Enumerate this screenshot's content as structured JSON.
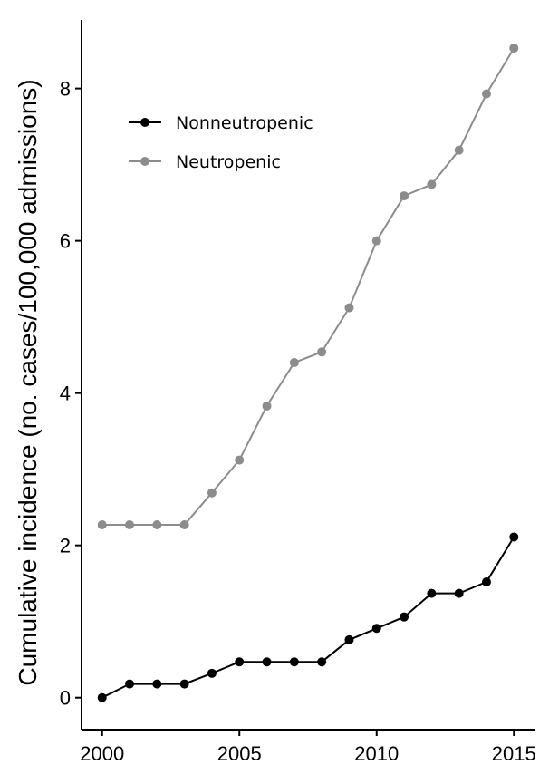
{
  "chart_data": {
    "type": "line",
    "title": "",
    "xlabel": "",
    "ylabel": "Cumulative incidence (no. cases/100,000 admissions)",
    "xlim": [
      1999.25,
      2015.75
    ],
    "ylim": [
      -0.42,
      8.9
    ],
    "xticks": [
      2000,
      2005,
      2010,
      2015
    ],
    "yticks": [
      0,
      2,
      4,
      6,
      8
    ],
    "grid": false,
    "legend_position": "top-left",
    "x": [
      2000,
      2001,
      2002,
      2003,
      2004,
      2005,
      2006,
      2007,
      2008,
      2009,
      2010,
      2011,
      2012,
      2013,
      2014,
      2015
    ],
    "series": [
      {
        "name": "Nonneutropenic",
        "color": "#000000",
        "values": [
          0.0,
          0.18,
          0.18,
          0.18,
          0.32,
          0.47,
          0.47,
          0.47,
          0.47,
          0.76,
          0.91,
          1.06,
          1.37,
          1.37,
          1.52,
          2.11
        ]
      },
      {
        "name": "Neutropenic",
        "color": "#8c8c8c",
        "values": [
          2.27,
          2.27,
          2.27,
          2.27,
          2.69,
          3.12,
          3.83,
          4.4,
          4.54,
          5.12,
          6.0,
          6.59,
          6.74,
          7.19,
          7.93,
          8.53
        ]
      }
    ]
  }
}
